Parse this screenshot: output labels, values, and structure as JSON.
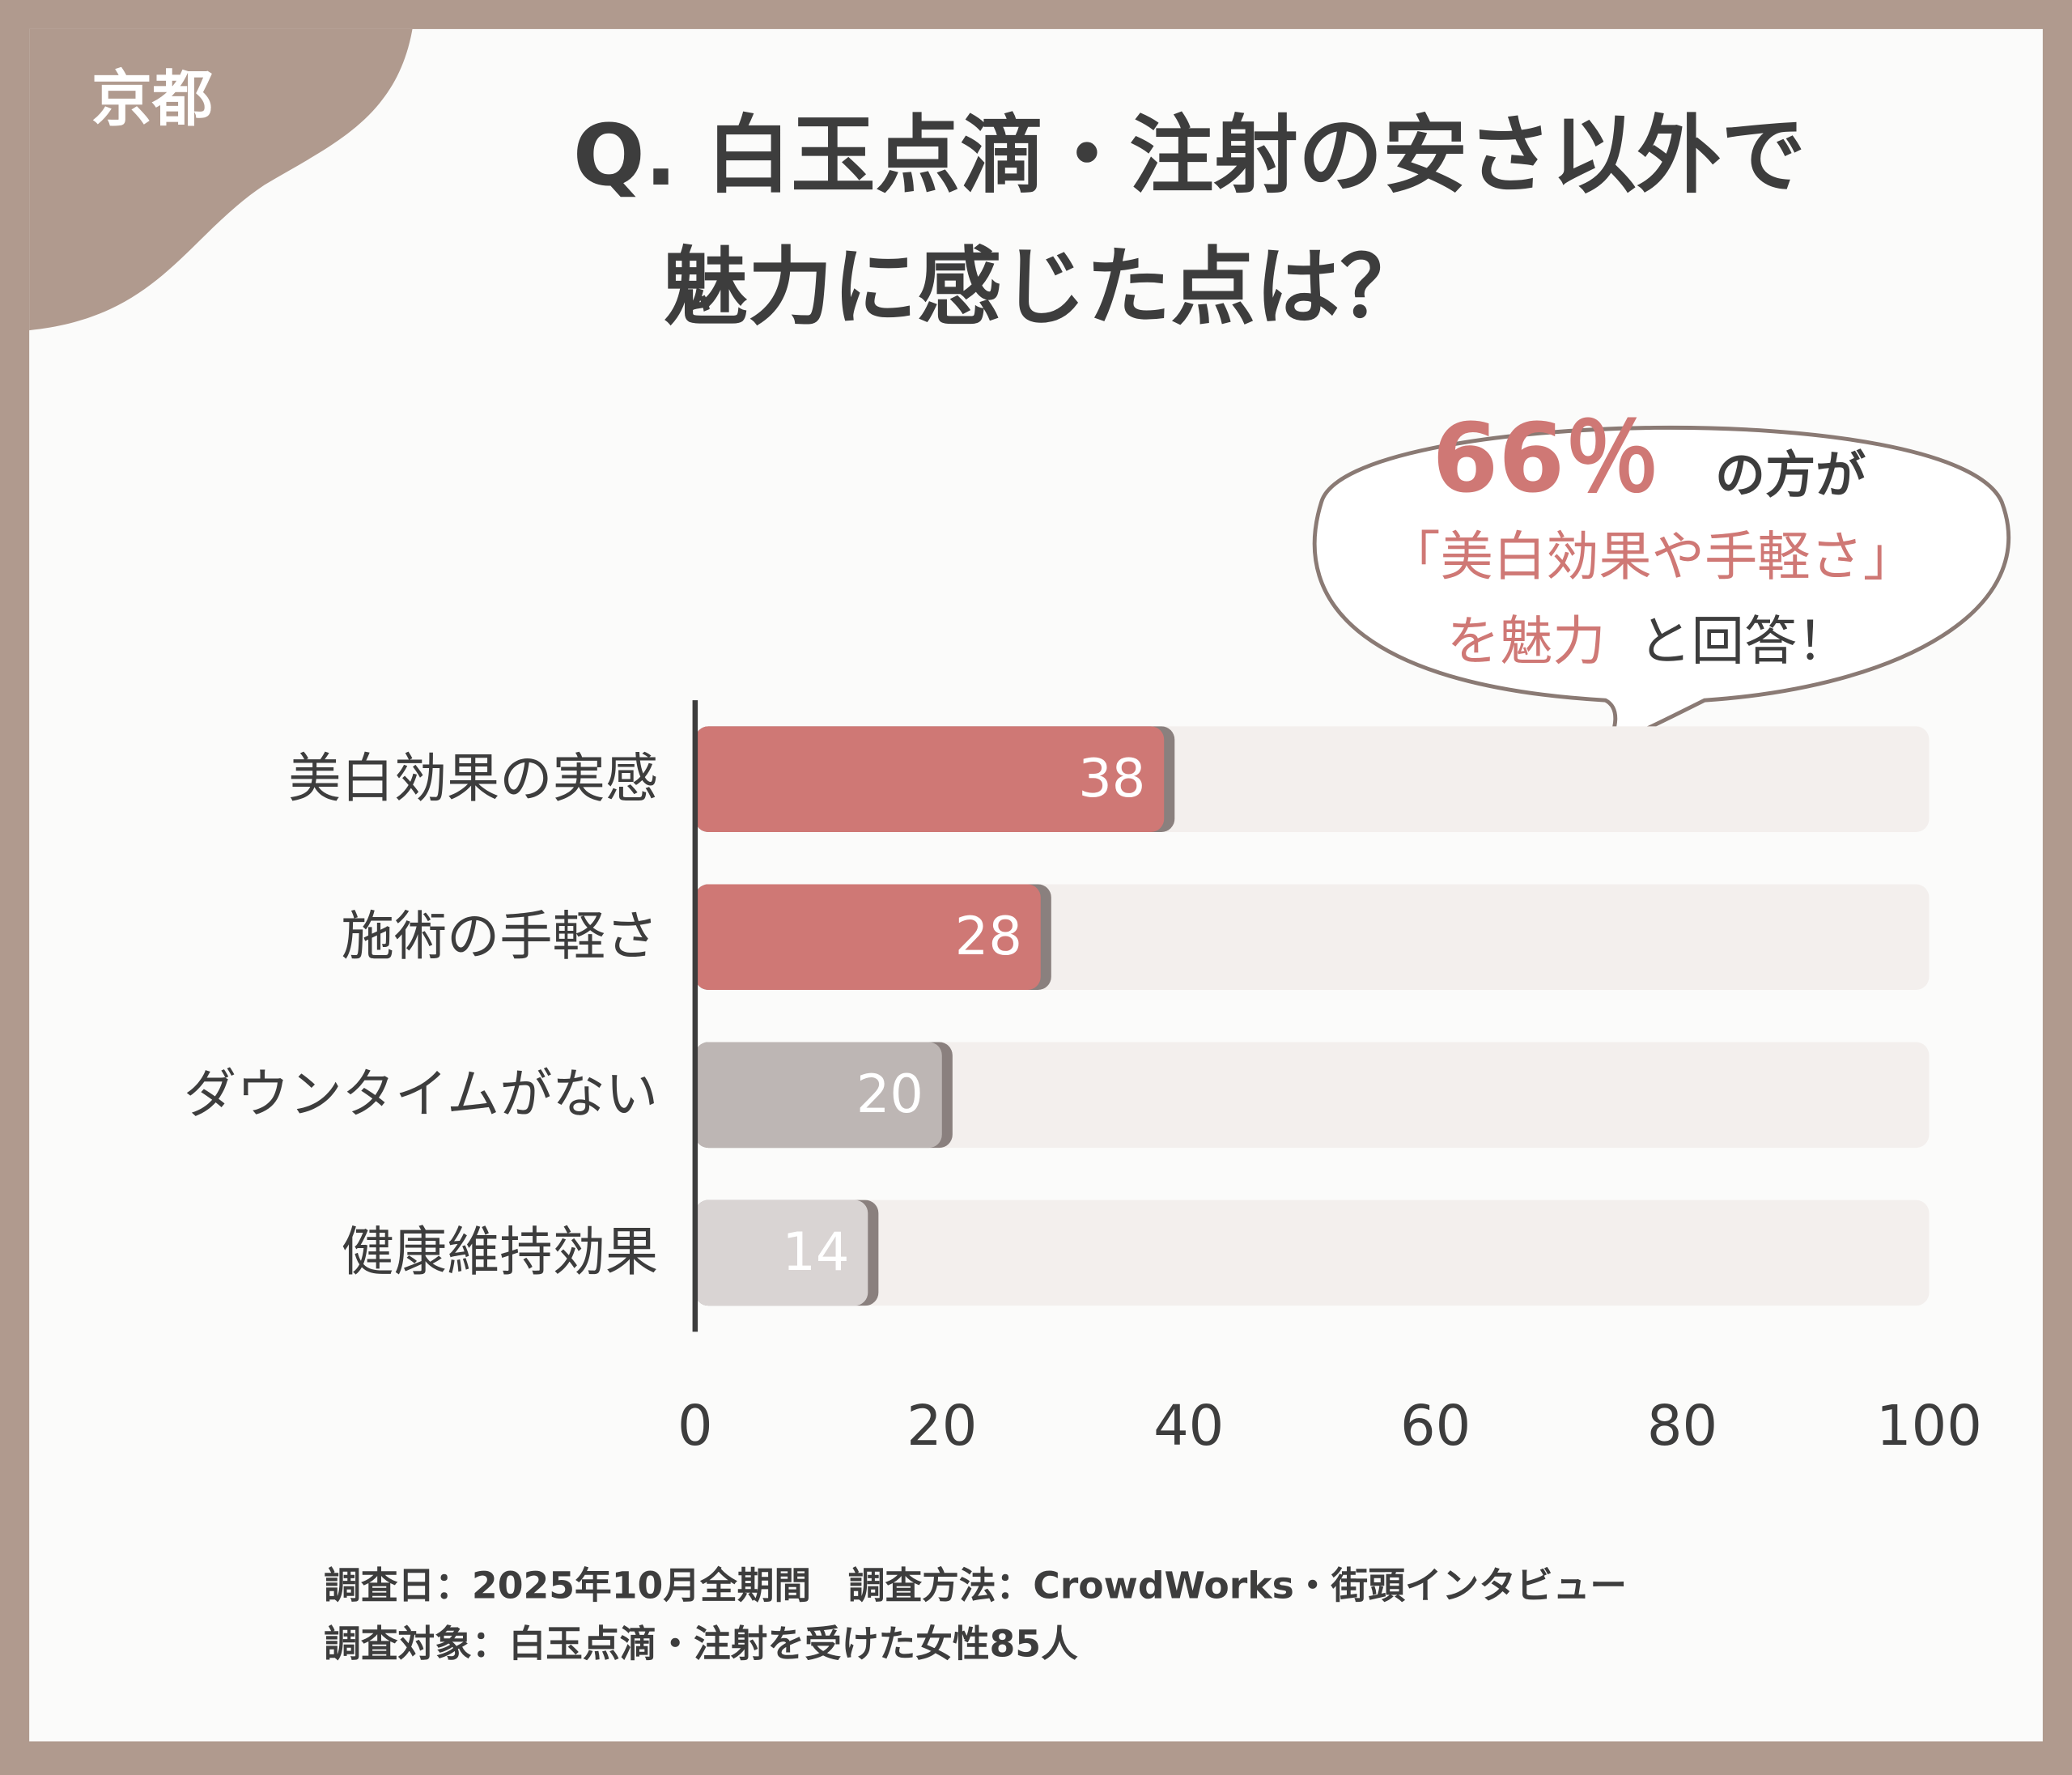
{
  "region": "京都",
  "chart_data": {
    "type": "bar",
    "orientation": "horizontal",
    "title_lines": [
      "Q. 白玉点滴・注射の安さ以外で",
      "魅力に感じた点は？"
    ],
    "categories": [
      "美白効果の実感",
      "施術の手軽さ",
      "ダウンタイムがない",
      "健康維持効果"
    ],
    "values": [
      38,
      28,
      20,
      14
    ],
    "colors": [
      "#cf7875",
      "#cf7875",
      "#bdb6b4",
      "#d9d4d3"
    ],
    "track_color": "#f3efed",
    "xlim": [
      0,
      100
    ],
    "xticks": [
      0,
      20,
      40,
      60,
      80,
      100
    ],
    "callout": {
      "highlight": "66％",
      "line1_rest": "の方が",
      "line2": "「美白効果や手軽さ」",
      "line3_highlight": "を魅力",
      "line3_rest": "と回答！"
    }
  },
  "footer": [
    "調査日：2025年10月全期間　調査方法：CrowdWorks・街頭インタビュー",
    "調査対象：白玉点滴・注射を受けた女性85人"
  ]
}
